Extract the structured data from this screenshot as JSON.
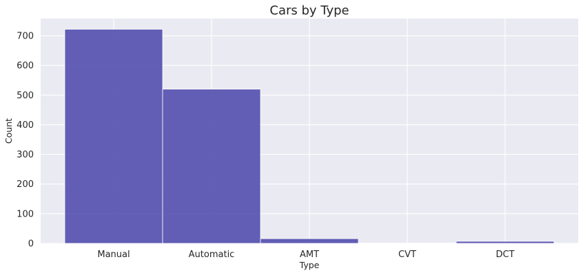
{
  "chart_data": {
    "type": "bar",
    "title": "Cars by Type",
    "xlabel": "Type",
    "ylabel": "Count",
    "categories": [
      "Manual",
      "Automatic",
      "AMT",
      "CVT",
      "DCT"
    ],
    "values": [
      722,
      520,
      16,
      1,
      7
    ],
    "ylim": [
      0,
      758
    ],
    "yticks": [
      0,
      100,
      200,
      300,
      400,
      500,
      600,
      700
    ],
    "grid": true,
    "colors": {
      "bar_fill": "#4e4aac",
      "bar_edge": "#ffffff",
      "plot_background": "#eaeaf2",
      "grid": "#ffffff"
    }
  }
}
